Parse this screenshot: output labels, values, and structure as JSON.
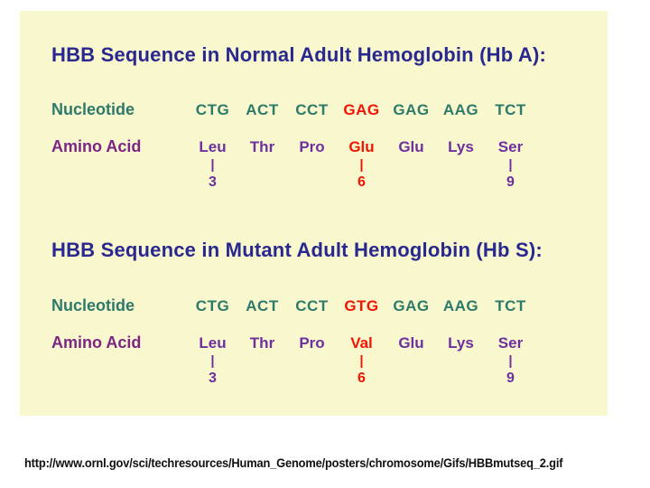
{
  "colors": {
    "page-bg": "#ffffff",
    "panel-bg": "#f8f7cd",
    "heading": "#28288e",
    "nucleotide": "#2d7a6b",
    "amino": "#6e2f9f",
    "amino-label": "#7c2584",
    "mutant": "#f21505",
    "url": "#111111"
  },
  "sections": [
    {
      "heading": "HBB Sequence in Normal Adult Hemoglobin (Hb A):",
      "nucleotide_label": "Nucleotide",
      "amino_label": "Amino Acid",
      "codons": [
        {
          "text": "CTG",
          "mutant": false
        },
        {
          "text": "ACT",
          "mutant": false
        },
        {
          "text": "CCT",
          "mutant": false
        },
        {
          "text": "GAG",
          "mutant": true
        },
        {
          "text": "GAG",
          "mutant": false
        },
        {
          "text": "AAG",
          "mutant": false
        },
        {
          "text": "TCT",
          "mutant": false
        }
      ],
      "amino_acids": [
        {
          "text": "Leu",
          "mutant": false
        },
        {
          "text": "Thr",
          "mutant": false
        },
        {
          "text": "Pro",
          "mutant": false
        },
        {
          "text": "Glu",
          "mutant": true
        },
        {
          "text": "Glu",
          "mutant": false
        },
        {
          "text": "Lys",
          "mutant": false
        },
        {
          "text": "Ser",
          "mutant": false
        }
      ],
      "markers": [
        {
          "bar": "|",
          "num": "3"
        },
        {},
        {},
        {
          "bar": "|",
          "num": "6"
        },
        {},
        {},
        {
          "bar": "|",
          "num": "9"
        }
      ]
    },
    {
      "heading": "HBB Sequence in Mutant Adult Hemoglobin (Hb S):",
      "nucleotide_label": "Nucleotide",
      "amino_label": "Amino Acid",
      "codons": [
        {
          "text": "CTG",
          "mutant": false
        },
        {
          "text": "ACT",
          "mutant": false
        },
        {
          "text": "CCT",
          "mutant": false
        },
        {
          "text": "GTG",
          "mutant": true
        },
        {
          "text": "GAG",
          "mutant": false
        },
        {
          "text": "AAG",
          "mutant": false
        },
        {
          "text": "TCT",
          "mutant": false
        }
      ],
      "amino_acids": [
        {
          "text": "Leu",
          "mutant": false
        },
        {
          "text": "Thr",
          "mutant": false
        },
        {
          "text": "Pro",
          "mutant": false
        },
        {
          "text": "Val",
          "mutant": true
        },
        {
          "text": "Glu",
          "mutant": false
        },
        {
          "text": "Lys",
          "mutant": false
        },
        {
          "text": "Ser",
          "mutant": false
        }
      ],
      "markers": [
        {
          "bar": "|",
          "num": "3"
        },
        {},
        {},
        {
          "bar": "|",
          "num": "6"
        },
        {},
        {},
        {
          "bar": "|",
          "num": "9"
        }
      ]
    }
  ],
  "footer": {
    "url": "http://www.ornl.gov/sci/techresources/Human_Genome/posters/chromosome/Gifs/HBBmutseq_2.gif"
  }
}
